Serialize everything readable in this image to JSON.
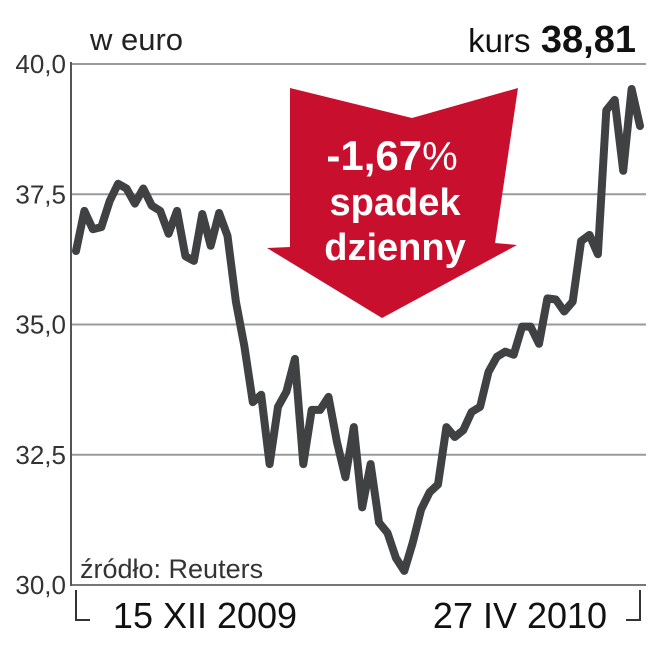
{
  "chart_data": {
    "type": "line",
    "unit_label": "w euro",
    "headline": {
      "label": "kurs",
      "value": "38,81"
    },
    "annotation": {
      "change": "-1,67",
      "percent_sign": "%",
      "line1": "spadek",
      "line2": "dzienny",
      "color": "#c8102e"
    },
    "source": "źródło: Reuters",
    "x_tick_labels": [
      "15 XII 2009",
      "27 IV 2010"
    ],
    "y_tick_labels": [
      "40,0",
      "37,5",
      "35,0",
      "32,5",
      "30,0"
    ],
    "y_ticks": [
      40,
      37.5,
      35,
      32.5,
      30
    ],
    "ylim": [
      30,
      40
    ],
    "grid": true,
    "line_color": "#404142",
    "values": [
      36.41,
      37.18,
      36.83,
      36.87,
      37.37,
      37.7,
      37.61,
      37.32,
      37.61,
      37.28,
      37.18,
      36.74,
      37.18,
      36.31,
      36.22,
      37.12,
      36.51,
      37.14,
      36.7,
      35.44,
      34.58,
      33.51,
      33.65,
      32.32,
      33.42,
      33.71,
      34.34,
      32.32,
      33.36,
      33.36,
      33.61,
      32.74,
      32.07,
      33.03,
      31.49,
      32.32,
      31.2,
      31.0,
      30.52,
      30.27,
      30.81,
      31.45,
      31.78,
      31.93,
      33.03,
      32.84,
      32.97,
      33.32,
      33.42,
      34.09,
      34.38,
      34.48,
      34.42,
      34.96,
      34.96,
      34.63,
      35.5,
      35.48,
      35.25,
      35.44,
      36.6,
      36.72,
      36.35,
      39.11,
      39.31,
      37.95,
      39.52,
      38.81
    ]
  }
}
